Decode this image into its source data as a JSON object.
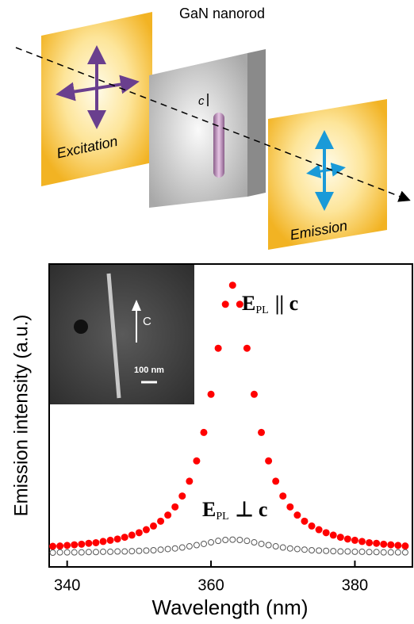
{
  "diagram": {
    "title": "GaN nanorod",
    "excitation": "Excitation",
    "axis": "c",
    "emission": "Emission",
    "inset_axis": "C",
    "inset_scale": "100 nm"
  },
  "chart_data": {
    "type": "scatter",
    "x_label": "Wavelength (nm)",
    "y_label": "Emission intensity (a.u.)",
    "xlim": [
      337.5,
      388
    ],
    "xticks": [
      340,
      360,
      380
    ],
    "ylim": [
      0,
      1
    ],
    "annotations": [
      {
        "main": "E",
        "sub": "PL",
        "tail": "|| c"
      },
      {
        "main": "E",
        "sub": "PL",
        "tail": "⊥ c"
      }
    ],
    "x": [
      338,
      339,
      340,
      341,
      342,
      343,
      344,
      345,
      346,
      347,
      348,
      349,
      350,
      351,
      352,
      353,
      354,
      355,
      356,
      357,
      358,
      359,
      360,
      361,
      362,
      363,
      364,
      365,
      366,
      367,
      368,
      369,
      370,
      371,
      372,
      373,
      374,
      375,
      376,
      377,
      378,
      379,
      380,
      381,
      382,
      383,
      384,
      385,
      386,
      387
    ],
    "series": [
      {
        "color": "#ff0000",
        "marker": "filled",
        "values": [
          0.068,
          0.069,
          0.071,
          0.073,
          0.075,
          0.078,
          0.08,
          0.084,
          0.088,
          0.092,
          0.098,
          0.105,
          0.113,
          0.123,
          0.135,
          0.151,
          0.171,
          0.198,
          0.234,
          0.283,
          0.35,
          0.444,
          0.57,
          0.722,
          0.867,
          0.93,
          0.867,
          0.722,
          0.57,
          0.444,
          0.35,
          0.283,
          0.234,
          0.198,
          0.171,
          0.151,
          0.135,
          0.123,
          0.113,
          0.105,
          0.098,
          0.092,
          0.088,
          0.084,
          0.08,
          0.078,
          0.075,
          0.073,
          0.071,
          0.069
        ]
      },
      {
        "color": "#555555",
        "marker": "open",
        "values": [
          0.047,
          0.048,
          0.048,
          0.048,
          0.048,
          0.049,
          0.049,
          0.05,
          0.05,
          0.051,
          0.051,
          0.052,
          0.053,
          0.054,
          0.055,
          0.057,
          0.059,
          0.061,
          0.064,
          0.068,
          0.072,
          0.076,
          0.081,
          0.086,
          0.089,
          0.09,
          0.089,
          0.086,
          0.081,
          0.076,
          0.072,
          0.068,
          0.064,
          0.061,
          0.059,
          0.057,
          0.055,
          0.054,
          0.053,
          0.052,
          0.051,
          0.051,
          0.05,
          0.05,
          0.049,
          0.049,
          0.048,
          0.048,
          0.048,
          0.048
        ]
      }
    ]
  }
}
